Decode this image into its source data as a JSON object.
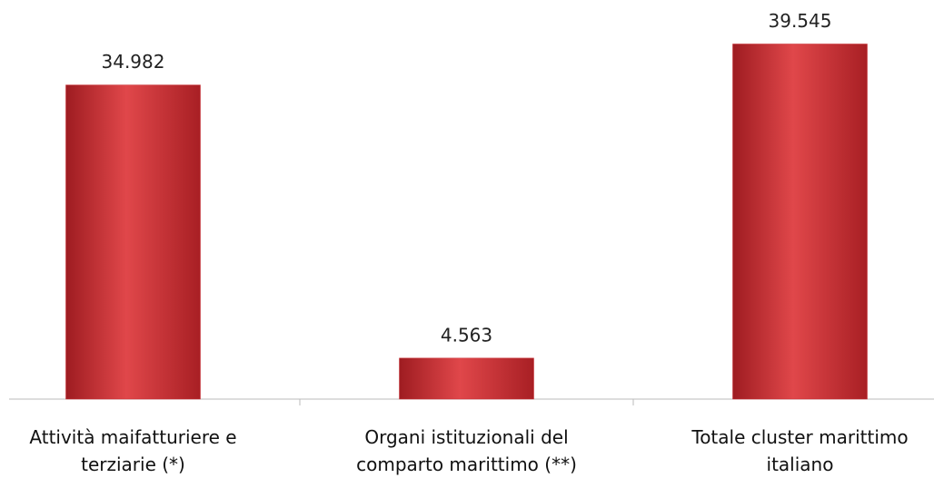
{
  "chart_data": {
    "type": "bar",
    "categories": [
      "Attività maifatturiere e terziarie (*)",
      "Organi istituzionali del comparto marittimo (**)",
      "Totale cluster marittimo italiano"
    ],
    "values": [
      34982,
      4563,
      39545
    ],
    "value_labels": [
      "34.982",
      "4.563",
      "39.545"
    ],
    "color": "#c8292e",
    "ylim": [
      0,
      40000
    ]
  }
}
